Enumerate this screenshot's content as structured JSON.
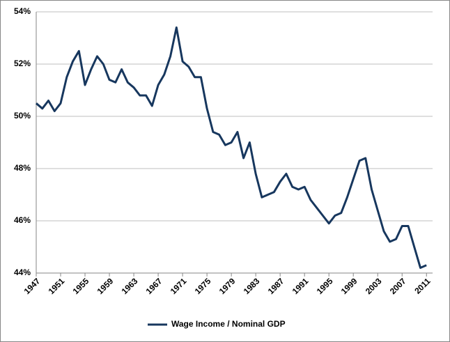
{
  "chart_data": {
    "type": "line",
    "x": [
      1947,
      1948,
      1949,
      1950,
      1951,
      1952,
      1953,
      1954,
      1955,
      1956,
      1957,
      1958,
      1959,
      1960,
      1961,
      1962,
      1963,
      1964,
      1965,
      1966,
      1967,
      1968,
      1969,
      1970,
      1971,
      1972,
      1973,
      1974,
      1975,
      1976,
      1977,
      1978,
      1979,
      1980,
      1981,
      1982,
      1983,
      1984,
      1985,
      1986,
      1987,
      1988,
      1989,
      1990,
      1991,
      1992,
      1993,
      1994,
      1995,
      1996,
      1997,
      1998,
      1999,
      2000,
      2001,
      2002,
      2003,
      2004,
      2005,
      2006,
      2007,
      2008,
      2009,
      2010,
      2011
    ],
    "series": [
      {
        "name": "Wage Income / Nominal GDP",
        "color": "#17375e",
        "values": [
          50.5,
          50.3,
          50.6,
          50.2,
          50.5,
          51.5,
          52.1,
          52.5,
          51.2,
          51.8,
          52.3,
          52.0,
          51.4,
          51.3,
          51.8,
          51.3,
          51.1,
          50.8,
          50.8,
          50.4,
          51.2,
          51.6,
          52.3,
          53.4,
          52.1,
          51.9,
          51.5,
          51.5,
          50.3,
          49.4,
          49.3,
          48.9,
          49.0,
          49.4,
          48.4,
          49.0,
          47.8,
          46.9,
          47.0,
          47.1,
          47.5,
          47.8,
          47.3,
          47.2,
          47.3,
          46.8,
          46.5,
          46.2,
          45.9,
          46.2,
          46.3,
          46.9,
          47.6,
          48.3,
          48.4,
          47.2,
          46.4,
          45.6,
          45.2,
          45.3,
          45.8,
          45.8,
          45.0,
          44.2,
          44.3
        ]
      }
    ],
    "xlim": [
      1947,
      2012
    ],
    "xticks": [
      1947,
      1951,
      1955,
      1959,
      1963,
      1967,
      1971,
      1975,
      1979,
      1983,
      1987,
      1991,
      1995,
      1999,
      2003,
      2007,
      2011
    ],
    "ylim": [
      44,
      54
    ],
    "yticks": [
      {
        "value": 44,
        "label": "44%"
      },
      {
        "value": 46,
        "label": "46%"
      },
      {
        "value": 48,
        "label": "48%"
      },
      {
        "value": 50,
        "label": "50%"
      },
      {
        "value": 52,
        "label": "52%"
      },
      {
        "value": 54,
        "label": "54%"
      }
    ],
    "grid": true,
    "legend": "bottom"
  }
}
